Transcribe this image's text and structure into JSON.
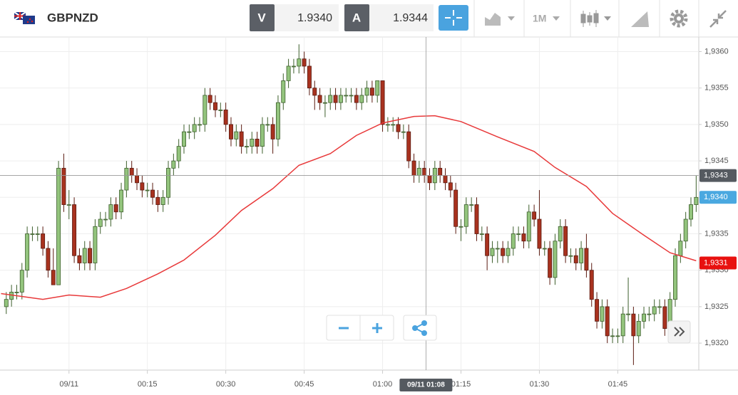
{
  "toolbar": {
    "symbol": "GBPNZD",
    "bid_label": "V",
    "bid": "1.9340",
    "ask_label": "A",
    "ask": "1.9344",
    "timeframe": "1M"
  },
  "chart_data": {
    "type": "candlestick",
    "x": [
      -12,
      -11,
      -10,
      -9,
      -8,
      -7,
      -6,
      -5,
      -4,
      -3,
      -2,
      -1,
      0,
      1,
      2,
      3,
      4,
      5,
      6,
      7,
      8,
      9,
      10,
      11,
      12,
      13,
      14,
      15,
      16,
      17,
      18,
      19,
      20,
      21,
      22,
      23,
      24,
      25,
      26,
      27,
      28,
      29,
      30,
      31,
      32,
      33,
      34,
      35,
      36,
      37,
      38,
      39,
      40,
      41,
      42,
      43,
      44,
      45,
      46,
      47,
      48,
      49,
      50,
      51,
      52,
      53,
      54,
      55,
      56,
      57,
      58,
      59,
      60,
      61,
      62,
      63,
      64,
      65,
      66,
      67,
      68,
      69,
      70,
      71,
      72,
      73,
      74,
      75,
      76,
      77,
      78,
      79,
      80,
      81,
      82,
      83,
      84,
      85,
      86,
      87,
      88,
      89,
      90,
      91,
      92,
      93,
      94,
      95,
      96,
      97,
      98,
      99,
      100,
      101,
      102,
      103,
      104,
      105,
      106,
      107,
      108,
      109,
      110,
      111,
      112,
      113,
      114,
      115,
      116,
      117,
      118,
      119,
      120
    ],
    "candles": [
      [
        1.9325,
        1.9327,
        1.9324,
        1.9326
      ],
      [
        1.9326,
        1.9328,
        1.9325,
        1.9327
      ],
      [
        1.9327,
        1.9328,
        1.9326,
        1.9327
      ],
      [
        1.9327,
        1.9331,
        1.9326,
        1.933
      ],
      [
        1.933,
        1.9336,
        1.9329,
        1.9335
      ],
      [
        1.9335,
        1.9336,
        1.9334,
        1.9335
      ],
      [
        1.9335,
        1.9336,
        1.9334,
        1.9335
      ],
      [
        1.9335,
        1.9336,
        1.9332,
        1.9333
      ],
      [
        1.9333,
        1.9334,
        1.9329,
        1.933
      ],
      [
        1.933,
        1.9333,
        1.9328,
        1.9328
      ],
      [
        1.9328,
        1.9345,
        1.9328,
        1.9344
      ],
      [
        1.9344,
        1.9346,
        1.9338,
        1.9339
      ],
      [
        1.9339,
        1.9341,
        1.9337,
        1.9339
      ],
      [
        1.9339,
        1.934,
        1.9331,
        1.9332
      ],
      [
        1.9332,
        1.9333,
        1.933,
        1.9331
      ],
      [
        1.9331,
        1.9334,
        1.933,
        1.9333
      ],
      [
        1.9333,
        1.9334,
        1.933,
        1.9331
      ],
      [
        1.9331,
        1.9337,
        1.933,
        1.9336
      ],
      [
        1.9336,
        1.9338,
        1.9335,
        1.9337
      ],
      [
        1.9337,
        1.9338,
        1.9336,
        1.9337
      ],
      [
        1.9337,
        1.934,
        1.9336,
        1.9339
      ],
      [
        1.9339,
        1.934,
        1.9337,
        1.9338
      ],
      [
        1.9338,
        1.9342,
        1.9337,
        1.9341
      ],
      [
        1.9341,
        1.9345,
        1.934,
        1.9344
      ],
      [
        1.9344,
        1.9345,
        1.9342,
        1.9343
      ],
      [
        1.9343,
        1.9344,
        1.9341,
        1.9342
      ],
      [
        1.9342,
        1.9343,
        1.934,
        1.9341
      ],
      [
        1.9341,
        1.9342,
        1.934,
        1.9341
      ],
      [
        1.9341,
        1.9342,
        1.9339,
        1.934
      ],
      [
        1.934,
        1.9341,
        1.9338,
        1.9339
      ],
      [
        1.9339,
        1.9341,
        1.9338,
        1.934
      ],
      [
        1.934,
        1.9345,
        1.9339,
        1.9344
      ],
      [
        1.9344,
        1.9346,
        1.9343,
        1.9345
      ],
      [
        1.9345,
        1.9348,
        1.9344,
        1.9347
      ],
      [
        1.9347,
        1.935,
        1.9346,
        1.9349
      ],
      [
        1.9349,
        1.935,
        1.9348,
        1.9349
      ],
      [
        1.9349,
        1.9351,
        1.9348,
        1.935
      ],
      [
        1.935,
        1.9351,
        1.9349,
        1.935
      ],
      [
        1.935,
        1.9355,
        1.9349,
        1.9354
      ],
      [
        1.9354,
        1.9355,
        1.9352,
        1.9353
      ],
      [
        1.9353,
        1.9354,
        1.9351,
        1.9352
      ],
      [
        1.9352,
        1.9353,
        1.9351,
        1.9352
      ],
      [
        1.9352,
        1.9353,
        1.9349,
        1.935
      ],
      [
        1.935,
        1.9351,
        1.9347,
        1.9348
      ],
      [
        1.9348,
        1.935,
        1.9347,
        1.9349
      ],
      [
        1.9349,
        1.935,
        1.9346,
        1.9347
      ],
      [
        1.9347,
        1.9348,
        1.9346,
        1.9347
      ],
      [
        1.9347,
        1.9349,
        1.9346,
        1.9348
      ],
      [
        1.9348,
        1.9349,
        1.9346,
        1.9347
      ],
      [
        1.9347,
        1.9351,
        1.9346,
        1.935
      ],
      [
        1.935,
        1.9351,
        1.9349,
        1.935
      ],
      [
        1.935,
        1.9351,
        1.9346,
        1.9348
      ],
      [
        1.9348,
        1.9354,
        1.9347,
        1.9353
      ],
      [
        1.9353,
        1.9357,
        1.9352,
        1.9356
      ],
      [
        1.9356,
        1.9359,
        1.9355,
        1.9358
      ],
      [
        1.9358,
        1.9359,
        1.9357,
        1.9358
      ],
      [
        1.9358,
        1.9361,
        1.9357,
        1.9359
      ],
      [
        1.9359,
        1.936,
        1.9357,
        1.9358
      ],
      [
        1.9358,
        1.9359,
        1.9354,
        1.9355
      ],
      [
        1.9355,
        1.9356,
        1.9352,
        1.9354
      ],
      [
        1.9354,
        1.9355,
        1.9352,
        1.9353
      ],
      [
        1.9353,
        1.9354,
        1.9351,
        1.9353
      ],
      [
        1.9353,
        1.9355,
        1.9352,
        1.9354
      ],
      [
        1.9354,
        1.9355,
        1.9352,
        1.9353
      ],
      [
        1.9353,
        1.9355,
        1.9352,
        1.9354
      ],
      [
        1.9354,
        1.9355,
        1.9353,
        1.9354
      ],
      [
        1.9354,
        1.9355,
        1.9353,
        1.9354
      ],
      [
        1.9354,
        1.9355,
        1.9352,
        1.9353
      ],
      [
        1.9353,
        1.9355,
        1.9352,
        1.9354
      ],
      [
        1.9354,
        1.9356,
        1.9353,
        1.9355
      ],
      [
        1.9355,
        1.9356,
        1.9353,
        1.9354
      ],
      [
        1.9354,
        1.9356,
        1.9353,
        1.9356
      ],
      [
        1.9356,
        1.9356,
        1.9349,
        1.935
      ],
      [
        1.935,
        1.9351,
        1.9349,
        1.935
      ],
      [
        1.935,
        1.9351,
        1.9349,
        1.935
      ],
      [
        1.935,
        1.9351,
        1.9348,
        1.9349
      ],
      [
        1.9349,
        1.935,
        1.9348,
        1.9349
      ],
      [
        1.9349,
        1.935,
        1.9344,
        1.9345
      ],
      [
        1.9345,
        1.9346,
        1.9342,
        1.9343
      ],
      [
        1.9343,
        1.9345,
        1.9342,
        1.9344
      ],
      [
        1.9344,
        1.9345,
        1.9342,
        1.9343
      ],
      [
        1.9343,
        1.9344,
        1.9341,
        1.9342
      ],
      [
        1.9342,
        1.9345,
        1.9341,
        1.9344
      ],
      [
        1.9344,
        1.9345,
        1.9342,
        1.9343
      ],
      [
        1.9343,
        1.9344,
        1.9341,
        1.9342
      ],
      [
        1.9342,
        1.9343,
        1.934,
        1.9341
      ],
      [
        1.9341,
        1.9342,
        1.9335,
        1.9336
      ],
      [
        1.9336,
        1.9337,
        1.9334,
        1.9336
      ],
      [
        1.9336,
        1.934,
        1.9335,
        1.9339
      ],
      [
        1.9339,
        1.934,
        1.9338,
        1.9339
      ],
      [
        1.9339,
        1.934,
        1.9334,
        1.9335
      ],
      [
        1.9335,
        1.9336,
        1.9334,
        1.9335
      ],
      [
        1.9335,
        1.9336,
        1.933,
        1.9332
      ],
      [
        1.9332,
        1.9334,
        1.9331,
        1.9333
      ],
      [
        1.9333,
        1.9334,
        1.9331,
        1.9333
      ],
      [
        1.9333,
        1.9334,
        1.9331,
        1.9332
      ],
      [
        1.9332,
        1.9334,
        1.9331,
        1.9333
      ],
      [
        1.9333,
        1.9336,
        1.9332,
        1.9335
      ],
      [
        1.9335,
        1.9336,
        1.9334,
        1.9335
      ],
      [
        1.9335,
        1.9336,
        1.9333,
        1.9334
      ],
      [
        1.9334,
        1.9339,
        1.9333,
        1.9338
      ],
      [
        1.9338,
        1.9339,
        1.9336,
        1.9337
      ],
      [
        1.9337,
        1.9341,
        1.9332,
        1.9333
      ],
      [
        1.9333,
        1.9334,
        1.9332,
        1.9333
      ],
      [
        1.9333,
        1.9334,
        1.9328,
        1.9329
      ],
      [
        1.9329,
        1.9335,
        1.9328,
        1.9334
      ],
      [
        1.9334,
        1.9337,
        1.9333,
        1.9336
      ],
      [
        1.9336,
        1.9337,
        1.9331,
        1.9332
      ],
      [
        1.9332,
        1.9333,
        1.9331,
        1.9332
      ],
      [
        1.9332,
        1.9333,
        1.933,
        1.9331
      ],
      [
        1.9331,
        1.9334,
        1.933,
        1.9333
      ],
      [
        1.9333,
        1.9335,
        1.9329,
        1.933
      ],
      [
        1.933,
        1.9331,
        1.9325,
        1.9326
      ],
      [
        1.9326,
        1.9327,
        1.9322,
        1.9323
      ],
      [
        1.9323,
        1.9326,
        1.9322,
        1.9325
      ],
      [
        1.9325,
        1.9326,
        1.932,
        1.9321
      ],
      [
        1.9321,
        1.9322,
        1.932,
        1.9321
      ],
      [
        1.9321,
        1.9322,
        1.932,
        1.9321
      ],
      [
        1.9321,
        1.9325,
        1.932,
        1.9324
      ],
      [
        1.9324,
        1.9329,
        1.9323,
        1.9324
      ],
      [
        1.9324,
        1.9325,
        1.9317,
        1.9321
      ],
      [
        1.9321,
        1.9324,
        1.932,
        1.9323
      ],
      [
        1.9323,
        1.9325,
        1.9322,
        1.9324
      ],
      [
        1.9324,
        1.9325,
        1.9323,
        1.9324
      ],
      [
        1.9324,
        1.9326,
        1.9323,
        1.9325
      ],
      [
        1.9325,
        1.9326,
        1.9324,
        1.9325
      ],
      [
        1.9325,
        1.9326,
        1.9321,
        1.9322
      ],
      [
        1.9322,
        1.9327,
        1.9321,
        1.9326
      ],
      [
        1.9326,
        1.9333,
        1.9325,
        1.9332
      ],
      [
        1.9332,
        1.9335,
        1.9331,
        1.9334
      ],
      [
        1.9334,
        1.9338,
        1.9333,
        1.9337
      ],
      [
        1.9337,
        1.934,
        1.9336,
        1.9339
      ],
      [
        1.9339,
        1.9343,
        1.9338,
        1.934
      ]
    ],
    "up_color": "#93c47d",
    "down_color": "#a8321f",
    "moving_average": {
      "color": "#e8393a",
      "x": [
        -13,
        -5,
        0,
        6,
        11,
        17,
        22,
        28,
        33,
        39,
        44,
        50,
        55,
        60,
        66,
        70,
        75,
        82,
        89,
        93,
        99,
        104,
        110,
        115,
        120
      ],
      "values": [
        1.93268,
        1.9326,
        1.93266,
        1.93263,
        1.93275,
        1.93295,
        1.93314,
        1.93348,
        1.93382,
        1.93412,
        1.93444,
        1.9346,
        1.93485,
        1.93502,
        1.93511,
        1.93512,
        1.93504,
        1.93483,
        1.93463,
        1.93441,
        1.93415,
        1.93378,
        1.93348,
        1.93324,
        1.93313
      ]
    },
    "xlim": [
      -13.2,
      120.5
    ],
    "xticks": [
      {
        "value": 0,
        "label": "09/11"
      },
      {
        "value": 15,
        "label": "00:15"
      },
      {
        "value": 30,
        "label": "00:30"
      },
      {
        "value": 45,
        "label": "00:45"
      },
      {
        "value": 60,
        "label": "01:00"
      },
      {
        "value": 75,
        "label": "01:15"
      },
      {
        "value": 90,
        "label": "01:30"
      },
      {
        "value": 105,
        "label": "01:45"
      }
    ],
    "ylim": [
      1.93163,
      1.9362
    ],
    "yticks": [
      {
        "value": 1.932,
        "label": "1,9320"
      },
      {
        "value": 1.9325,
        "label": "1,9325"
      },
      {
        "value": 1.933,
        "label": "1,9330"
      },
      {
        "value": 1.9335,
        "label": "1,9335"
      },
      {
        "value": 1.934,
        "label": "1,9340"
      },
      {
        "value": 1.9345,
        "label": "1,9345"
      },
      {
        "value": 1.935,
        "label": "1,9350"
      },
      {
        "value": 1.9355,
        "label": "1,9355"
      },
      {
        "value": 1.936,
        "label": "1,9360"
      }
    ],
    "grid": true,
    "price_labels": [
      {
        "value": 1.9343,
        "label": "1,9343",
        "color": "#555a60"
      },
      {
        "value": 1.934,
        "label": "1,9340",
        "color": "#4aa8e0"
      },
      {
        "value": 1.9331,
        "label": "1,9331",
        "color": "#e8110f"
      }
    ],
    "crosshair": {
      "x": 68.3,
      "y": 1.9343,
      "x_label": "09/11 01:08"
    }
  }
}
